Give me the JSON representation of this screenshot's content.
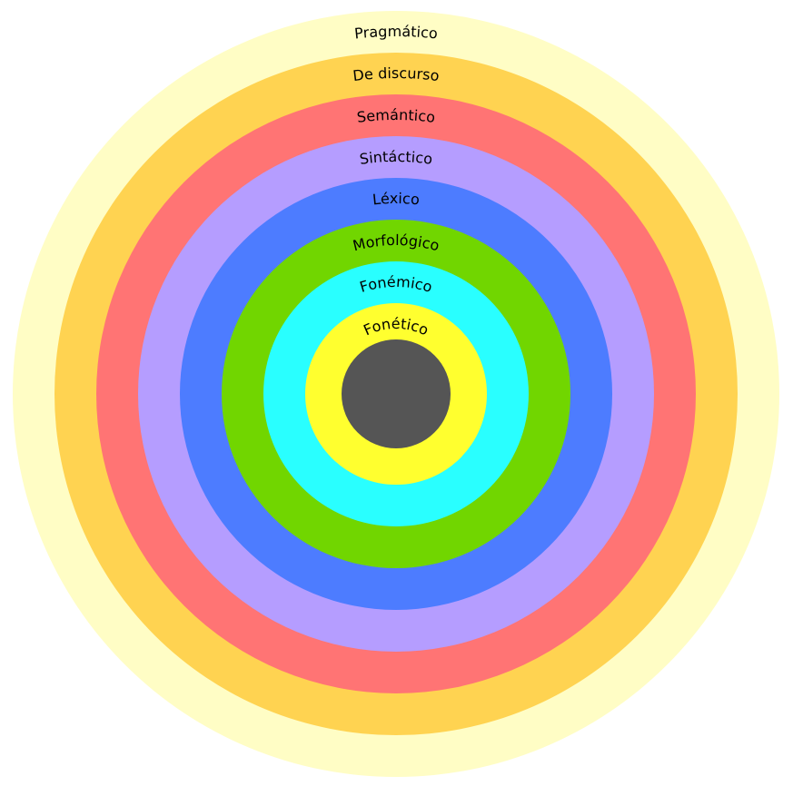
{
  "diagram": {
    "core": {
      "name": "core",
      "color": "#555555"
    },
    "rings": [
      {
        "label": "Pragmático",
        "color": "#FFFDC5"
      },
      {
        "label": "De discurso",
        "color": "#FFD351"
      },
      {
        "label": "Semántico",
        "color": "#FF7474"
      },
      {
        "label": "Sintáctico",
        "color": "#B59DFF"
      },
      {
        "label": "Léxico",
        "color": "#4D7CFF"
      },
      {
        "label": "Morfológico",
        "color": "#71D600"
      },
      {
        "label": "Fonémico",
        "color": "#29FFFF"
      },
      {
        "label": "Fonético",
        "color": "#FFFF2F"
      }
    ]
  }
}
